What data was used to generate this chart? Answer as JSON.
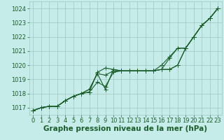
{
  "background_color": "#c5ece8",
  "grid_color": "#9dc8c2",
  "line_color": "#1a5c2a",
  "xlabel": "Graphe pression niveau de la mer (hPa)",
  "ylim": [
    1016.5,
    1024.5
  ],
  "xlim": [
    -0.5,
    23.5
  ],
  "yticks": [
    1017,
    1018,
    1019,
    1020,
    1021,
    1022,
    1023,
    1024
  ],
  "xticks": [
    0,
    1,
    2,
    3,
    4,
    5,
    6,
    7,
    8,
    9,
    10,
    11,
    12,
    13,
    14,
    15,
    16,
    17,
    18,
    19,
    20,
    21,
    22,
    23
  ],
  "series": [
    [
      1016.8,
      1017.0,
      1017.1,
      1017.1,
      1017.5,
      1017.8,
      1018.0,
      1018.1,
      1019.5,
      1019.8,
      1019.7,
      1019.6,
      1019.6,
      1019.6,
      1019.6,
      1019.6,
      1019.7,
      1019.7,
      1020.0,
      1021.2,
      1022.0,
      1022.8,
      1023.3,
      1024.0
    ],
    [
      1016.8,
      1017.0,
      1017.1,
      1017.1,
      1017.5,
      1017.8,
      1018.0,
      1018.1,
      1018.8,
      1018.5,
      1019.5,
      1019.6,
      1019.6,
      1019.6,
      1019.6,
      1019.6,
      1019.7,
      1019.7,
      1020.0,
      1021.2,
      1022.0,
      1022.8,
      1023.3,
      1024.0
    ],
    [
      1016.8,
      1017.0,
      1017.1,
      1017.1,
      1017.5,
      1017.8,
      1018.0,
      1018.3,
      1019.4,
      1019.3,
      1019.6,
      1019.6,
      1019.6,
      1019.6,
      1019.6,
      1019.6,
      1019.7,
      1020.5,
      1021.2,
      1021.2,
      1022.0,
      1022.8,
      1023.3,
      1024.0
    ],
    [
      1016.8,
      1017.0,
      1017.1,
      1017.1,
      1017.5,
      1017.8,
      1018.0,
      1018.3,
      1019.4,
      1018.3,
      1019.7,
      1019.6,
      1019.6,
      1019.6,
      1019.6,
      1019.6,
      1020.0,
      1020.6,
      1021.2,
      1021.2,
      1022.0,
      1022.8,
      1023.3,
      1024.0
    ]
  ],
  "marker": "+",
  "markersize": 4,
  "linewidth": 0.8,
  "fontsize_ticks": 6,
  "fontsize_xlabel": 7.5
}
